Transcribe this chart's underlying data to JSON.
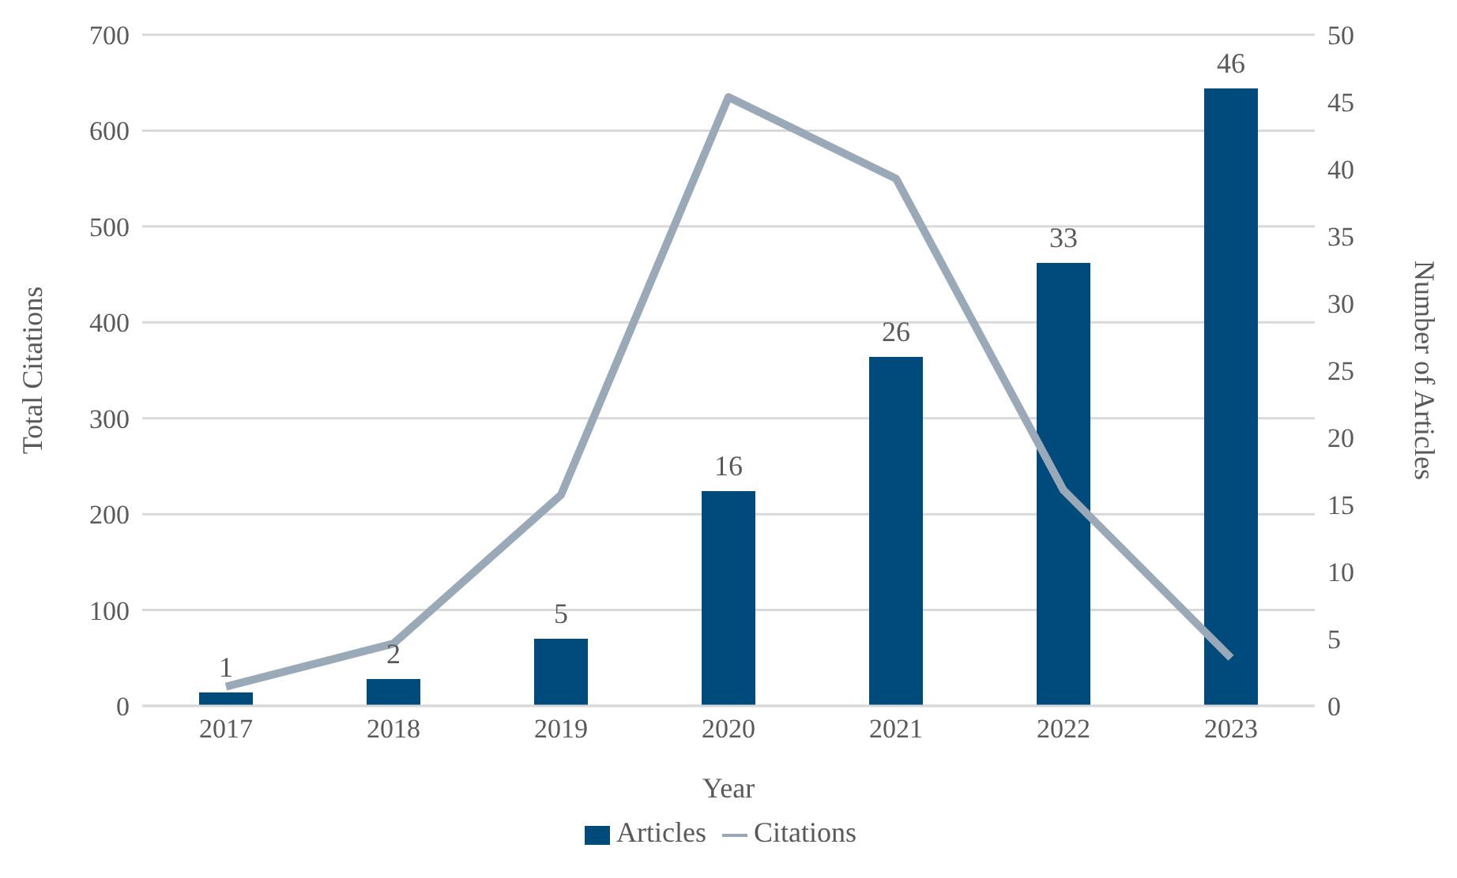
{
  "chart_data": {
    "type": "bar",
    "xlabel": "Year",
    "ylabel": "Total Citations",
    "y2label": "Number of Articles",
    "categories": [
      "2017",
      "2018",
      "2019",
      "2020",
      "2021",
      "2022",
      "2023"
    ],
    "series": [
      {
        "name": "Articles",
        "axis": "y2",
        "color": "#004a7c",
        "values": [
          1,
          2,
          5,
          16,
          26,
          33,
          46
        ],
        "value_labels": [
          "1",
          "2",
          "5",
          "16",
          "26",
          "33",
          "46"
        ]
      },
      {
        "name": "Citations",
        "type": "line",
        "axis": "y",
        "color": "#9aa9b8",
        "values": [
          20,
          65,
          220,
          635,
          550,
          225,
          50
        ],
        "marker": "none"
      }
    ],
    "ylim": [
      0,
      700
    ],
    "yticks": [
      0,
      100,
      200,
      300,
      400,
      500,
      600,
      700
    ],
    "y2lim": [
      0,
      50
    ],
    "y2ticks": [
      0,
      5,
      10,
      15,
      20,
      25,
      30,
      35,
      40,
      45,
      50
    ],
    "grid": "y",
    "legend": "bottom"
  }
}
